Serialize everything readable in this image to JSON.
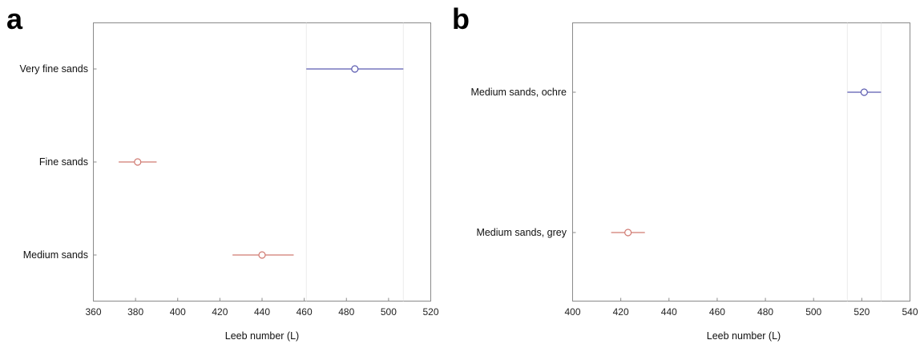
{
  "chart_data": [
    {
      "type": "scatter",
      "panel_label": "a",
      "xlabel": "Leeb number (L)",
      "xlim": [
        360,
        520
      ],
      "xticks": [
        360,
        380,
        400,
        420,
        440,
        460,
        480,
        500,
        520
      ],
      "categories": [
        "Very fine sands",
        "Fine sands",
        "Medium sands"
      ],
      "points": [
        {
          "category": "Very fine sands",
          "mean": 484,
          "low": 461,
          "high": 507,
          "color": "#5b5bb0"
        },
        {
          "category": "Fine sands",
          "mean": 381,
          "low": 372,
          "high": 390,
          "color": "#d07a72"
        },
        {
          "category": "Medium sands",
          "mean": 440,
          "low": 426,
          "high": 455,
          "color": "#d07a72"
        }
      ],
      "reference_lines": [
        461,
        507
      ],
      "grid": false
    },
    {
      "type": "scatter",
      "panel_label": "b",
      "xlabel": "Leeb number (L)",
      "xlim": [
        400,
        540
      ],
      "xticks": [
        400,
        420,
        440,
        460,
        480,
        500,
        520,
        540
      ],
      "categories": [
        "Medium sands, ochre",
        "Medium sands, grey"
      ],
      "points": [
        {
          "category": "Medium sands, ochre",
          "mean": 521,
          "low": 514,
          "high": 528,
          "color": "#5b5bb0"
        },
        {
          "category": "Medium sands, grey",
          "mean": 423,
          "low": 416,
          "high": 430,
          "color": "#d07a72"
        }
      ],
      "reference_lines": [
        514,
        528
      ],
      "grid": false
    }
  ]
}
